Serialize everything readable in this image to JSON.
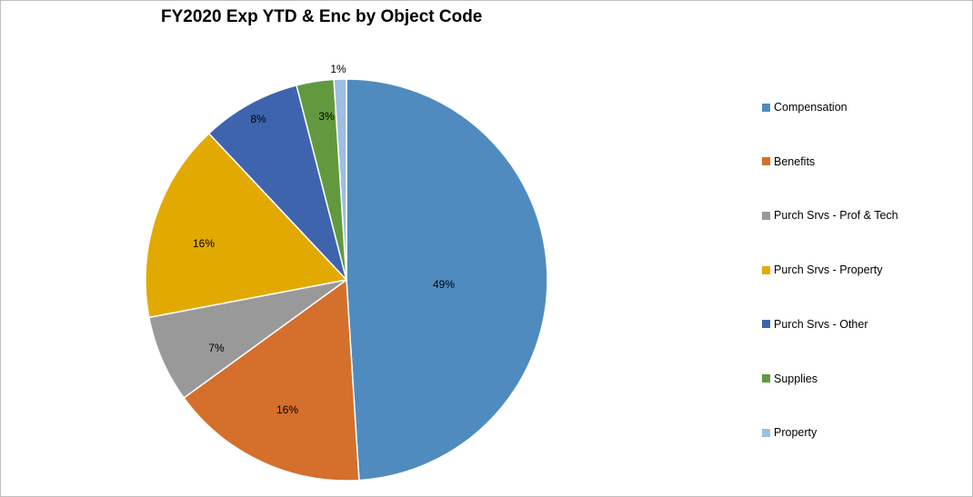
{
  "chart_data": {
    "type": "pie",
    "title": "FY2020 Exp YTD & Enc by Object Code",
    "slices": [
      {
        "label": "Compensation",
        "value": 49,
        "data_label": "49%",
        "color": "#4f8bbe"
      },
      {
        "label": "Benefits",
        "value": 16,
        "data_label": "16%",
        "color": "#d46f2c"
      },
      {
        "label": "Purch Srvs - Prof & Tech",
        "value": 7,
        "data_label": "7%",
        "color": "#999999"
      },
      {
        "label": "Purch Srvs - Property",
        "value": 16,
        "data_label": "16%",
        "color": "#e2aa00"
      },
      {
        "label": "Purch Srvs - Other",
        "value": 8,
        "data_label": "8%",
        "color": "#3d64ad"
      },
      {
        "label": "Supplies",
        "value": 3,
        "data_label": "3%",
        "color": "#62993e"
      },
      {
        "label": "Property",
        "value": 1,
        "data_label": "1%",
        "color": "#a0bde3"
      }
    ],
    "legend_position": "right"
  }
}
